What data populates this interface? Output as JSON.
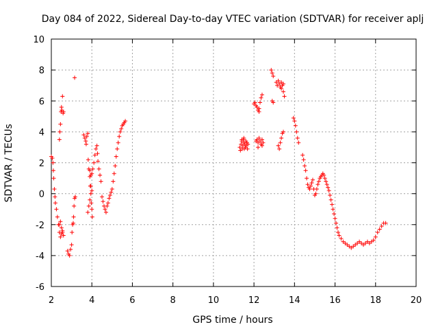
{
  "chart_data": {
    "type": "scatter",
    "title": "Day 084 of 2022, Sidereal Day-to-day VTEC variation (SDTVAR) for receiver aplj",
    "xlabel": "GPS time / hours",
    "ylabel": "SDTVAR / TECUs",
    "xlim": [
      2,
      20
    ],
    "ylim": [
      -6,
      10
    ],
    "xticks": [
      2,
      4,
      6,
      8,
      10,
      12,
      14,
      16,
      18,
      20
    ],
    "yticks": [
      -6,
      -4,
      -2,
      0,
      2,
      4,
      6,
      8,
      10
    ],
    "grid": true,
    "marker": "plus",
    "series": [
      {
        "name": "SDTVAR",
        "color": "#ff0000",
        "points": [
          [
            2.0,
            2.4
          ],
          [
            2.05,
            2.3
          ],
          [
            2.08,
            2.0
          ],
          [
            2.1,
            1.5
          ],
          [
            2.12,
            1.0
          ],
          [
            2.15,
            0.3
          ],
          [
            2.18,
            -0.2
          ],
          [
            2.2,
            -0.6
          ],
          [
            2.25,
            -1.0
          ],
          [
            2.3,
            -1.5
          ],
          [
            2.35,
            -2.0
          ],
          [
            2.4,
            -2.5
          ],
          [
            2.45,
            -2.8
          ],
          [
            2.5,
            -2.6
          ],
          [
            2.55,
            -2.5
          ],
          [
            2.6,
            -2.7
          ],
          [
            2.4,
            -2.0
          ],
          [
            2.45,
            -1.8
          ],
          [
            2.5,
            -2.2
          ],
          [
            2.55,
            -2.4
          ],
          [
            2.4,
            3.5
          ],
          [
            2.42,
            4.0
          ],
          [
            2.45,
            4.5
          ],
          [
            2.48,
            5.3
          ],
          [
            2.5,
            5.6
          ],
          [
            2.52,
            5.4
          ],
          [
            2.55,
            6.3
          ],
          [
            2.58,
            5.2
          ],
          [
            2.6,
            5.3
          ],
          [
            2.8,
            -3.7
          ],
          [
            2.85,
            -3.9
          ],
          [
            2.9,
            -4.0
          ],
          [
            2.95,
            -3.6
          ],
          [
            3.0,
            -3.3
          ],
          [
            3.02,
            -2.5
          ],
          [
            3.05,
            -2.0
          ],
          [
            3.08,
            -1.9
          ],
          [
            3.1,
            -1.5
          ],
          [
            3.12,
            -0.8
          ],
          [
            3.15,
            -0.3
          ],
          [
            3.18,
            -0.2
          ],
          [
            3.15,
            7.5
          ],
          [
            3.6,
            3.8
          ],
          [
            3.65,
            3.6
          ],
          [
            3.7,
            3.4
          ],
          [
            3.72,
            3.2
          ],
          [
            3.75,
            3.7
          ],
          [
            3.8,
            3.9
          ],
          [
            3.82,
            2.2
          ],
          [
            3.85,
            1.6
          ],
          [
            3.9,
            1.1
          ],
          [
            3.92,
            0.5
          ],
          [
            3.95,
            0.0
          ],
          [
            3.97,
            -0.6
          ],
          [
            4.0,
            -1.0
          ],
          [
            4.02,
            -1.5
          ],
          [
            3.9,
            1.5
          ],
          [
            3.95,
            1.2
          ],
          [
            4.0,
            1.3
          ],
          [
            4.05,
            1.6
          ],
          [
            4.1,
            2.0
          ],
          [
            4.15,
            2.5
          ],
          [
            4.2,
            2.9
          ],
          [
            4.25,
            3.1
          ],
          [
            4.28,
            2.6
          ],
          [
            4.3,
            2.1
          ],
          [
            4.35,
            1.6
          ],
          [
            4.4,
            1.2
          ],
          [
            4.45,
            0.8
          ],
          [
            3.8,
            -1.2
          ],
          [
            3.85,
            -0.8
          ],
          [
            3.9,
            -0.4
          ],
          [
            3.95,
            0.5
          ],
          [
            4.0,
            0.2
          ],
          [
            4.5,
            -0.2
          ],
          [
            4.55,
            -0.5
          ],
          [
            4.6,
            -0.8
          ],
          [
            4.65,
            -1.0
          ],
          [
            4.7,
            -1.2
          ],
          [
            4.75,
            -0.8
          ],
          [
            4.8,
            -0.6
          ],
          [
            4.85,
            -0.3
          ],
          [
            4.9,
            -0.1
          ],
          [
            4.95,
            0.1
          ],
          [
            5.0,
            0.3
          ],
          [
            5.05,
            0.8
          ],
          [
            5.1,
            1.3
          ],
          [
            5.15,
            1.8
          ],
          [
            5.2,
            2.4
          ],
          [
            5.25,
            2.9
          ],
          [
            5.3,
            3.3
          ],
          [
            5.35,
            3.7
          ],
          [
            5.4,
            4.0
          ],
          [
            5.45,
            4.2
          ],
          [
            5.5,
            4.4
          ],
          [
            5.55,
            4.5
          ],
          [
            5.6,
            4.6
          ],
          [
            5.65,
            4.7
          ],
          [
            11.3,
            3.0
          ],
          [
            11.33,
            2.8
          ],
          [
            11.36,
            3.2
          ],
          [
            11.4,
            3.4
          ],
          [
            11.42,
            2.9
          ],
          [
            11.45,
            3.1
          ],
          [
            11.48,
            3.5
          ],
          [
            11.5,
            3.3
          ],
          [
            11.52,
            2.9
          ],
          [
            11.55,
            3.2
          ],
          [
            11.58,
            3.0
          ],
          [
            11.6,
            3.4
          ],
          [
            11.62,
            3.1
          ],
          [
            11.65,
            3.3
          ],
          [
            11.68,
            2.9
          ],
          [
            11.7,
            3.2
          ],
          [
            11.5,
            3.6
          ],
          [
            11.4,
            3.5
          ],
          [
            12.0,
            5.8
          ],
          [
            12.05,
            5.9
          ],
          [
            12.1,
            5.7
          ],
          [
            12.15,
            5.6
          ],
          [
            12.2,
            5.4
          ],
          [
            12.25,
            5.5
          ],
          [
            12.3,
            5.9
          ],
          [
            12.35,
            6.2
          ],
          [
            12.4,
            6.4
          ],
          [
            12.25,
            5.3
          ],
          [
            12.1,
            3.4
          ],
          [
            12.15,
            3.5
          ],
          [
            12.2,
            3.3
          ],
          [
            12.25,
            3.6
          ],
          [
            12.3,
            3.4
          ],
          [
            12.35,
            3.2
          ],
          [
            12.4,
            3.5
          ],
          [
            12.45,
            3.3
          ],
          [
            12.2,
            3.0
          ],
          [
            12.4,
            3.1
          ],
          [
            12.85,
            8.0
          ],
          [
            12.9,
            7.8
          ],
          [
            12.95,
            7.6
          ],
          [
            12.9,
            6.0
          ],
          [
            12.95,
            5.9
          ],
          [
            13.1,
            7.2
          ],
          [
            13.15,
            7.0
          ],
          [
            13.2,
            7.3
          ],
          [
            13.25,
            7.1
          ],
          [
            13.3,
            6.9
          ],
          [
            13.35,
            7.2
          ],
          [
            13.4,
            7.0
          ],
          [
            13.45,
            6.6
          ],
          [
            13.5,
            6.3
          ],
          [
            13.45,
            7.1
          ],
          [
            13.35,
            6.8
          ],
          [
            13.2,
            3.1
          ],
          [
            13.25,
            2.9
          ],
          [
            13.3,
            3.3
          ],
          [
            13.35,
            3.6
          ],
          [
            13.4,
            3.9
          ],
          [
            13.45,
            4.0
          ],
          [
            13.95,
            4.9
          ],
          [
            14.0,
            4.7
          ],
          [
            14.05,
            4.4
          ],
          [
            14.1,
            4.0
          ],
          [
            14.15,
            3.6
          ],
          [
            14.2,
            3.3
          ],
          [
            14.4,
            2.5
          ],
          [
            14.45,
            2.2
          ],
          [
            14.5,
            1.8
          ],
          [
            14.55,
            1.5
          ],
          [
            14.6,
            1.0
          ],
          [
            14.65,
            0.6
          ],
          [
            14.7,
            0.4
          ],
          [
            14.75,
            0.3
          ],
          [
            14.8,
            0.5
          ],
          [
            14.85,
            0.7
          ],
          [
            14.9,
            0.9
          ],
          [
            14.95,
            0.3
          ],
          [
            15.0,
            -0.1
          ],
          [
            15.05,
            0.0
          ],
          [
            15.1,
            0.3
          ],
          [
            15.15,
            0.6
          ],
          [
            15.2,
            0.8
          ],
          [
            15.25,
            1.0
          ],
          [
            15.3,
            1.1
          ],
          [
            15.35,
            1.2
          ],
          [
            15.4,
            1.3
          ],
          [
            15.45,
            1.2
          ],
          [
            15.5,
            1.0
          ],
          [
            15.55,
            0.8
          ],
          [
            15.6,
            0.6
          ],
          [
            15.65,
            0.4
          ],
          [
            15.7,
            0.2
          ],
          [
            15.75,
            -0.1
          ],
          [
            15.8,
            -0.4
          ],
          [
            15.85,
            -0.7
          ],
          [
            15.9,
            -1.0
          ],
          [
            15.95,
            -1.3
          ],
          [
            16.0,
            -1.6
          ],
          [
            16.05,
            -1.9
          ],
          [
            16.1,
            -2.2
          ],
          [
            16.15,
            -2.5
          ],
          [
            16.2,
            -2.7
          ],
          [
            16.3,
            -2.9
          ],
          [
            16.4,
            -3.1
          ],
          [
            16.5,
            -3.2
          ],
          [
            16.6,
            -3.3
          ],
          [
            16.7,
            -3.4
          ],
          [
            16.8,
            -3.5
          ],
          [
            16.9,
            -3.4
          ],
          [
            17.0,
            -3.3
          ],
          [
            17.1,
            -3.2
          ],
          [
            17.2,
            -3.1
          ],
          [
            17.3,
            -3.2
          ],
          [
            17.4,
            -3.3
          ],
          [
            17.5,
            -3.2
          ],
          [
            17.6,
            -3.1
          ],
          [
            17.7,
            -3.2
          ],
          [
            17.8,
            -3.1
          ],
          [
            17.9,
            -3.0
          ],
          [
            18.0,
            -2.8
          ],
          [
            18.1,
            -2.5
          ],
          [
            18.2,
            -2.3
          ],
          [
            18.3,
            -2.1
          ],
          [
            18.4,
            -1.9
          ],
          [
            18.5,
            -1.9
          ]
        ]
      }
    ]
  }
}
